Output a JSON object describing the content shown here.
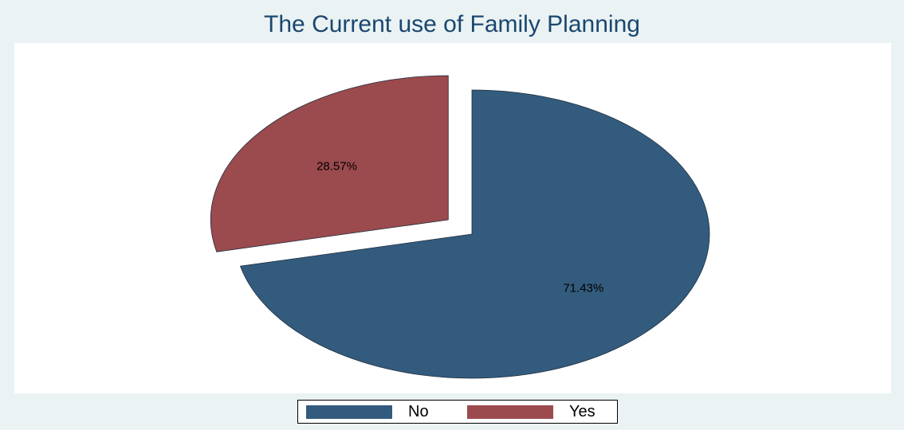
{
  "chart_data": {
    "type": "pie",
    "title": "The Current use of Family Planning",
    "slices": [
      {
        "name": "No",
        "value": 71.43,
        "label": "71.43%",
        "color": "#335b7d",
        "exploded": false
      },
      {
        "name": "Yes",
        "value": 28.57,
        "label": "28.57%",
        "color": "#9b4a4e",
        "exploded": true
      }
    ],
    "legend": {
      "position": "bottom"
    }
  }
}
